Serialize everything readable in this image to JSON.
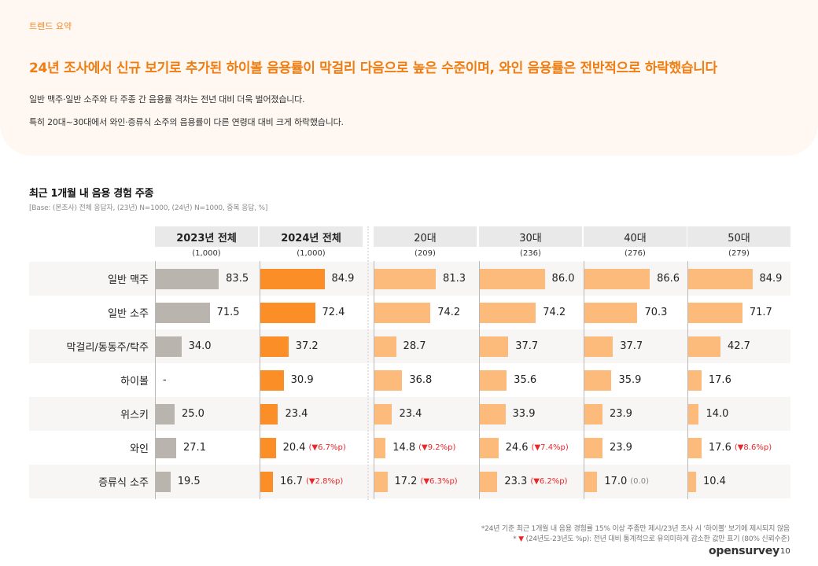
{
  "summary": {
    "section_label": "트렌드 요약",
    "headline": "24년 조사에서 신규 보기로 추가된 하이볼 음용률이 막걸리 다음으로 높은 수준이며, 와인 음용률은 전반적으로 하락했습니다",
    "lines": [
      "일반 맥주·일반  소주와  타  주종  간  음용률  격차는  전년  대비  더욱  벌어졌습니다.",
      "특히 20대~30대에서  와인·증류식  소주의  음용률이  다른  연령대  대비  크게  하락했습니다."
    ]
  },
  "colors": {
    "accent": "#f07d12",
    "bar_2023": "#b9b4ad",
    "bar_2024": "#fc8e28",
    "bar_age": "#fdbb7b",
    "decrease": "#e8262b",
    "header_bg": "#e9e9e9",
    "row_alt_bg": "#f7f6f4"
  },
  "chart_data": {
    "type": "table",
    "title": "최근 1개월 내 음용 경험 주종",
    "subtitle": "[Base: (본조사) 전체 응답자, (23년) N=1000, (24년) N=1000, 중복 응답, %]",
    "xlim": [
      0,
      100
    ],
    "categories": [
      "일반 맥주",
      "일반 소주",
      "막걸리/동동주/탁주",
      "하이볼",
      "위스키",
      "와인",
      "증류식 소주"
    ],
    "series": [
      {
        "name": "2023년 전체",
        "n": "(1,000)",
        "color_key": "bar_2023",
        "bold": true,
        "values": [
          83.5,
          71.5,
          34.0,
          null,
          25.0,
          27.1,
          19.5
        ],
        "labels": [
          "83.5",
          "71.5",
          "34.0",
          "-",
          "25.0",
          "27.1",
          "19.5"
        ],
        "deltas": [
          null,
          null,
          null,
          null,
          null,
          null,
          null
        ]
      },
      {
        "name": "2024년 전체",
        "n": "(1,000)",
        "color_key": "bar_2024",
        "bold": true,
        "values": [
          84.9,
          72.4,
          37.2,
          30.9,
          23.4,
          20.4,
          16.7
        ],
        "labels": [
          "84.9",
          "72.4",
          "37.2",
          "30.9",
          "23.4",
          "20.4",
          "16.7"
        ],
        "deltas": [
          null,
          null,
          null,
          null,
          null,
          "(▼6.7%p)",
          "(▼2.8%p)"
        ]
      },
      {
        "name": "20대",
        "n": "(209)",
        "color_key": "bar_age",
        "bold": false,
        "values": [
          81.3,
          74.2,
          28.7,
          36.8,
          23.4,
          14.8,
          17.2
        ],
        "labels": [
          "81.3",
          "74.2",
          "28.7",
          "36.8",
          "23.4",
          "14.8",
          "17.2"
        ],
        "deltas": [
          null,
          null,
          null,
          null,
          null,
          "(▼9.2%p)",
          "(▼6.3%p)"
        ]
      },
      {
        "name": "30대",
        "n": "(236)",
        "color_key": "bar_age",
        "bold": false,
        "values": [
          86.0,
          74.2,
          37.7,
          35.6,
          33.9,
          24.6,
          23.3
        ],
        "labels": [
          "86.0",
          "74.2",
          "37.7",
          "35.6",
          "33.9",
          "24.6",
          "23.3"
        ],
        "deltas": [
          null,
          null,
          null,
          null,
          null,
          "(▼7.4%p)",
          "(▼6.2%p)"
        ]
      },
      {
        "name": "40대",
        "n": "(276)",
        "color_key": "bar_age",
        "bold": false,
        "values": [
          86.6,
          70.3,
          37.7,
          35.9,
          23.9,
          23.9,
          17.0
        ],
        "labels": [
          "86.6",
          "70.3",
          "37.7",
          "35.9",
          "23.9",
          "23.9",
          "17.0"
        ],
        "deltas": [
          null,
          null,
          null,
          null,
          null,
          null,
          "(0.0)"
        ]
      },
      {
        "name": "50대",
        "n": "(279)",
        "color_key": "bar_age",
        "bold": false,
        "values": [
          84.9,
          71.7,
          42.7,
          17.6,
          14.0,
          17.6,
          10.4
        ],
        "labels": [
          "84.9",
          "71.7",
          "42.7",
          "17.6",
          "14.0",
          "17.6",
          "10.4"
        ],
        "deltas": [
          null,
          null,
          null,
          null,
          null,
          "(▼8.6%p)",
          null
        ]
      }
    ]
  },
  "footnotes": {
    "line1": "*24년 기준 최근 1개월 내 음용 경험률 15% 이상 주종만 제시/23년 조사 시 '하이볼' 보기에 제시되지 않음",
    "line2_prefix": "* ",
    "line2_icon": "▼",
    "line2_text": " (24년도-23년도 %p): 전년 대비 통계적으로 유의미하게 감소한 값만 표기 (80% 신뢰수준)"
  },
  "footer": {
    "brand": "opensurvey",
    "page_number": "10"
  }
}
